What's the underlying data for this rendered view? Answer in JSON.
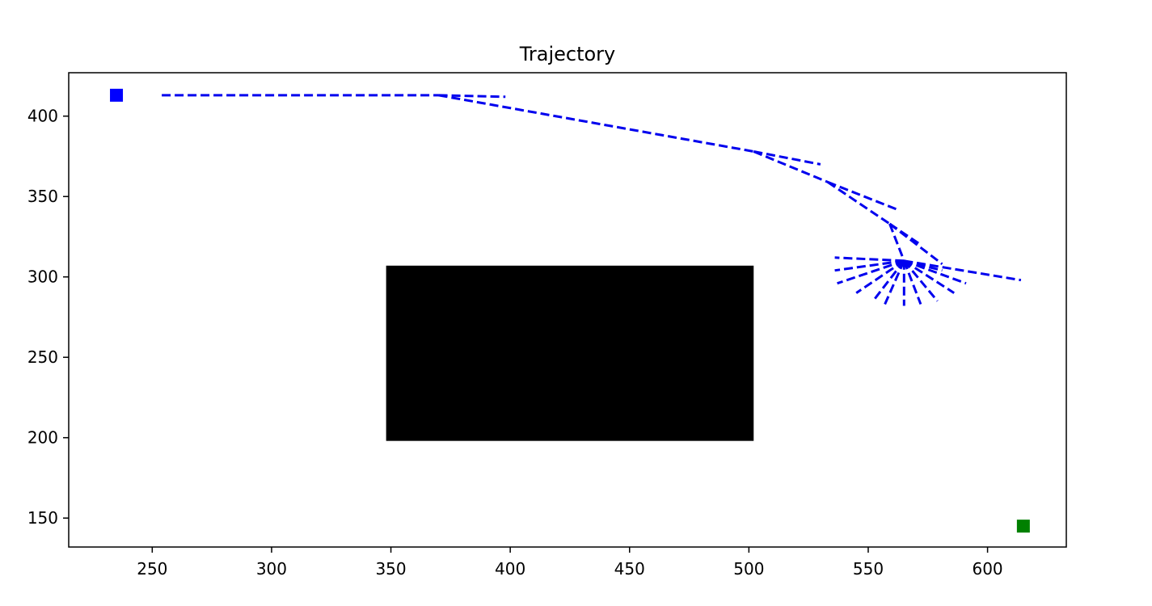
{
  "chart_data": {
    "type": "line",
    "title": "Trajectory",
    "xlabel": "",
    "ylabel": "",
    "xlim": [
      215,
      633
    ],
    "ylim": [
      132,
      427
    ],
    "xticks": [
      250,
      300,
      350,
      400,
      450,
      500,
      550,
      600
    ],
    "yticks": [
      150,
      200,
      250,
      300,
      350,
      400
    ],
    "grid": false,
    "legend": "none",
    "colors": {
      "path": "#0000ee",
      "start": "#0000ff",
      "goal": "#008000",
      "obstacle": "#000000"
    },
    "start": {
      "x": 235,
      "y": 413
    },
    "goal": {
      "x": 615,
      "y": 145
    },
    "obstacles": [
      {
        "x0": 348,
        "x1": 502,
        "y0": 198,
        "y1": 307
      }
    ],
    "series": [
      {
        "values": [
          [
            254,
            413
          ],
          [
            370,
            413
          ]
        ]
      },
      {
        "values": [
          [
            370,
            413
          ],
          [
            398,
            412
          ]
        ]
      },
      {
        "values": [
          [
            370,
            413
          ],
          [
            502,
            378
          ]
        ]
      },
      {
        "values": [
          [
            502,
            378
          ],
          [
            530,
            370
          ]
        ]
      },
      {
        "values": [
          [
            502,
            378
          ],
          [
            533,
            359
          ]
        ]
      },
      {
        "values": [
          [
            533,
            359
          ],
          [
            562,
            342
          ]
        ]
      },
      {
        "values": [
          [
            533,
            359
          ],
          [
            559,
            333
          ]
        ]
      },
      {
        "values": [
          [
            559,
            333
          ],
          [
            572,
            320
          ]
        ]
      },
      {
        "values": [
          [
            559,
            333
          ],
          [
            581,
            308
          ]
        ]
      },
      {
        "values": [
          [
            559,
            333
          ],
          [
            565,
            310
          ]
        ]
      },
      {
        "values": [
          [
            565,
            310
          ],
          [
            614,
            298
          ]
        ]
      },
      {
        "values": [
          [
            565,
            310
          ],
          [
            536,
            312
          ]
        ]
      },
      {
        "values": [
          [
            565,
            310
          ],
          [
            536,
            304
          ]
        ]
      },
      {
        "values": [
          [
            565,
            310
          ],
          [
            537,
            296
          ]
        ]
      },
      {
        "values": [
          [
            565,
            310
          ],
          [
            545,
            290
          ]
        ]
      },
      {
        "values": [
          [
            565,
            310
          ],
          [
            552,
            285
          ]
        ]
      },
      {
        "values": [
          [
            565,
            310
          ],
          [
            557,
            283
          ]
        ]
      },
      {
        "values": [
          [
            565,
            310
          ],
          [
            565,
            282
          ]
        ]
      },
      {
        "values": [
          [
            565,
            310
          ],
          [
            572,
            283
          ]
        ]
      },
      {
        "values": [
          [
            565,
            310
          ],
          [
            579,
            285
          ]
        ]
      },
      {
        "values": [
          [
            565,
            310
          ],
          [
            586,
            290
          ]
        ]
      },
      {
        "values": [
          [
            565,
            310
          ],
          [
            591,
            296
          ]
        ]
      },
      {
        "values": [
          [
            565,
            310
          ],
          [
            581,
            304
          ]
        ]
      }
    ]
  }
}
